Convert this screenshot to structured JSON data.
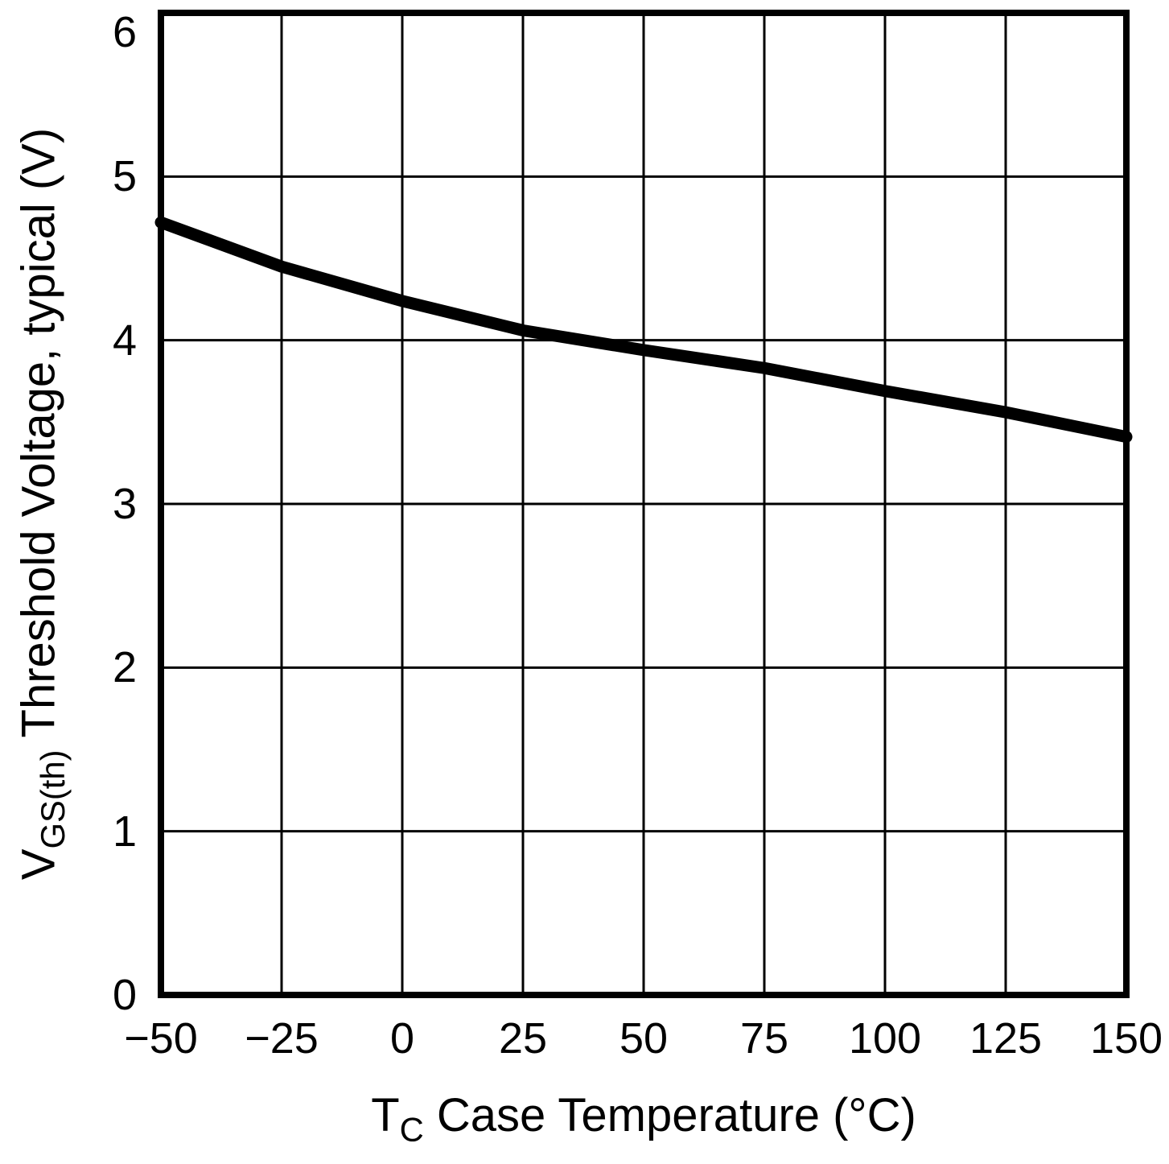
{
  "chart_data": {
    "type": "line",
    "title": "",
    "xlabel": "T_C Case Temperature (°C)",
    "ylabel": "V_GS(th) Threshold Voltage, typical (V)",
    "x": [
      -50,
      -25,
      0,
      25,
      50,
      75,
      100,
      125,
      150
    ],
    "series": [
      {
        "name": "VGS(th) typical",
        "values": [
          4.72,
          4.45,
          4.24,
          4.06,
          3.94,
          3.83,
          3.69,
          3.56,
          3.41
        ]
      }
    ],
    "xlim": [
      -50,
      150
    ],
    "ylim": [
      0,
      6
    ],
    "xticks": [
      -50,
      -25,
      0,
      25,
      50,
      75,
      100,
      125,
      150
    ],
    "xtick_labels": [
      "−50",
      "−25",
      "0",
      "25",
      "50",
      "75",
      "100",
      "125",
      "150"
    ],
    "yticks": [
      0,
      1,
      2,
      3,
      4,
      5,
      6
    ],
    "ytick_labels": [
      "0",
      "1",
      "2",
      "3",
      "4",
      "5",
      "6"
    ],
    "grid": true,
    "legend": "none",
    "line_color": "#000000",
    "grid_color": "#000000",
    "axis_color": "#000000",
    "background": "#ffffff"
  },
  "labels": {
    "y_main": "V",
    "y_sub": "GS(th)",
    "y_rest": " Threshold Voltage, typical (V)",
    "x_main": "T",
    "x_sub": "C",
    "x_rest": " Case Temperature (°C)"
  }
}
